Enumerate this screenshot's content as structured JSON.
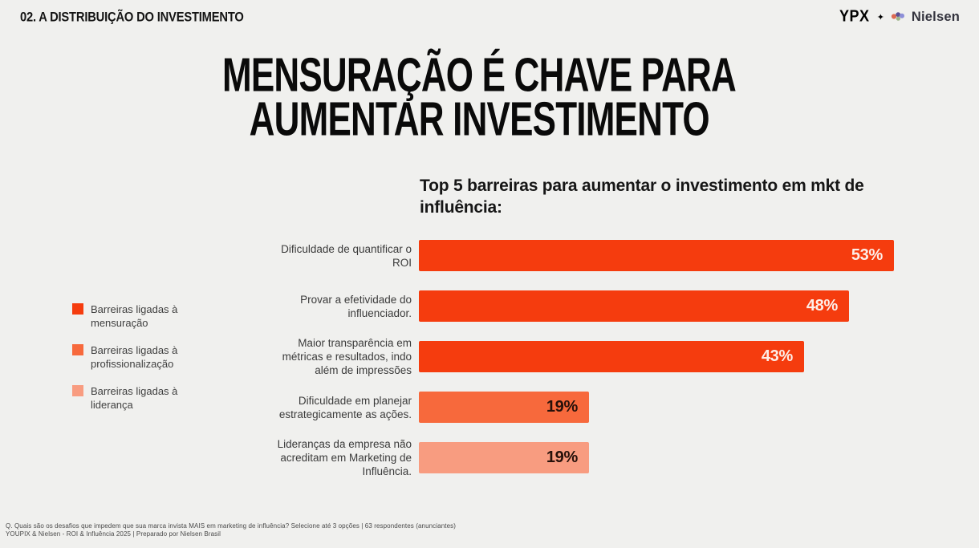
{
  "header": {
    "section_label": "02. A DISTRIBUIÇÃO DO INVESTIMENTO",
    "brand_left": "YPX",
    "brand_separator": "✦",
    "brand_right": "Nielsen"
  },
  "title": {
    "line1": "MENSURAÇÃO É CHAVE PARA",
    "line2": "AUMENTAR INVESTIMENTO"
  },
  "chart_data": {
    "type": "bar",
    "orientation": "horizontal",
    "title": "Top 5 barreiras para aumentar o investimento em mkt de influência:",
    "categories": [
      "Dificuldade de quantificar o ROI",
      "Provar a efetividade do influenciador.",
      "Maior transparência em métricas e resultados, indo além de impressões",
      "Dificuldade em planejar estrategicamente as ações.",
      "Lideranças da empresa não acreditam em Marketing de Influência."
    ],
    "values": [
      53,
      48,
      43,
      19,
      19
    ],
    "value_labels": [
      "53%",
      "48%",
      "43%",
      "19%",
      "19%"
    ],
    "bar_groups": [
      "mensuracao",
      "mensuracao",
      "mensuracao",
      "profissionalizacao",
      "lideranca"
    ],
    "colors": {
      "mensuracao": "#f53c0e",
      "profissionalizacao": "#f7693c",
      "lideranca": "#f89c80"
    },
    "value_label_colors": [
      "#fdeee8",
      "#fdeee8",
      "#fdeee8",
      "#26110a",
      "#26110a"
    ],
    "xlim": [
      0,
      56
    ],
    "grid": false,
    "legend_position": "left",
    "legend": [
      {
        "label": "Barreiras ligadas à mensuração",
        "color": "#f53c0e"
      },
      {
        "label": "Barreiras ligadas à profissionalização",
        "color": "#f7693c"
      },
      {
        "label": "Barreiras ligadas à liderança",
        "color": "#f89c80"
      }
    ]
  },
  "footer": {
    "line1": "Q. Quais são os desafios que impedem que sua marca invista MAIS em marketing de influência? Selecione até 3 opções | 63 respondentes (anunciantes)",
    "line2": "YOUPIX & Nielsen  - ROI & Influência 2025 | Preparado por Nielsen Brasil"
  }
}
